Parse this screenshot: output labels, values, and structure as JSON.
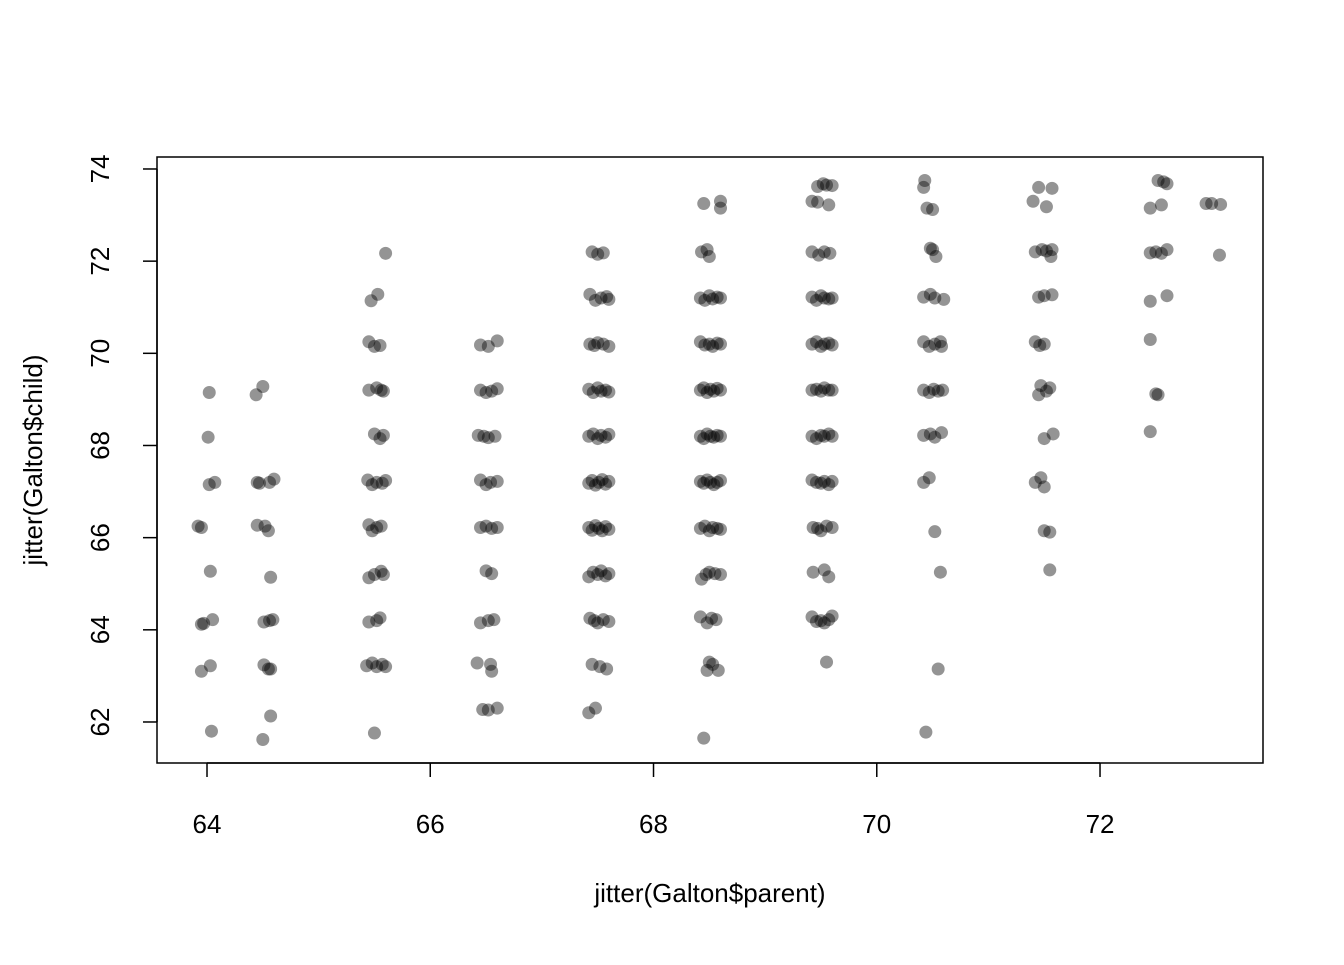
{
  "chart_data": {
    "type": "scatter",
    "xlabel": "jitter(Galton$parent)",
    "ylabel": "jitter(Galton$child)",
    "xlim": [
      63.552,
      73.46
    ],
    "ylim": [
      61.11,
      74.26
    ],
    "xticks": [
      64,
      66,
      68,
      70,
      72
    ],
    "yticks": [
      62,
      64,
      66,
      68,
      70,
      72,
      74
    ],
    "color": "rgba(0,0,0,0.42)",
    "x": [
      64.02,
      64.01,
      64.02,
      64.07,
      63.92,
      63.95,
      64.03,
      63.95,
      63.97,
      64.05,
      63.95,
      64.03,
      64.04,
      64.44,
      64.5,
      64.45,
      64.47,
      64.56,
      64.6,
      64.45,
      64.52,
      64.55,
      64.57,
      64.51,
      64.59,
      64.56,
      64.51,
      64.55,
      64.57,
      64.57,
      64.5,
      65.6,
      65.47,
      65.53,
      65.45,
      65.5,
      65.55,
      65.45,
      65.52,
      65.56,
      65.58,
      65.5,
      65.55,
      65.58,
      65.44,
      65.48,
      65.52,
      65.57,
      65.6,
      65.45,
      65.48,
      65.52,
      65.56,
      65.45,
      65.5,
      65.56,
      65.58,
      65.45,
      65.52,
      65.55,
      65.43,
      65.48,
      65.52,
      65.57,
      65.6,
      65.5,
      66.45,
      66.52,
      66.6,
      66.45,
      66.5,
      66.55,
      66.6,
      66.43,
      66.48,
      66.52,
      66.58,
      66.45,
      66.5,
      66.54,
      66.6,
      66.45,
      66.5,
      66.55,
      66.6,
      66.5,
      66.55,
      66.45,
      66.52,
      66.57,
      66.42,
      66.54,
      66.55,
      66.47,
      66.52,
      66.6,
      67.45,
      67.5,
      67.55,
      67.43,
      67.48,
      67.53,
      67.58,
      67.6,
      67.43,
      67.47,
      67.5,
      67.55,
      67.6,
      67.42,
      67.46,
      67.5,
      67.53,
      67.57,
      67.6,
      67.42,
      67.46,
      67.5,
      67.53,
      67.57,
      67.6,
      67.42,
      67.45,
      67.48,
      67.51,
      67.54,
      67.57,
      67.6,
      67.42,
      67.45,
      67.48,
      67.51,
      67.54,
      67.57,
      67.6,
      67.42,
      67.46,
      67.5,
      67.53,
      67.57,
      67.6,
      67.43,
      67.47,
      67.5,
      67.55,
      67.6,
      67.45,
      67.52,
      67.58,
      67.42,
      67.48,
      68.45,
      68.6,
      68.6,
      68.43,
      68.48,
      68.5,
      68.42,
      68.46,
      68.5,
      68.53,
      68.57,
      68.6,
      68.42,
      68.46,
      68.5,
      68.53,
      68.57,
      68.6,
      68.42,
      68.45,
      68.48,
      68.51,
      68.54,
      68.57,
      68.6,
      68.42,
      68.45,
      68.48,
      68.51,
      68.54,
      68.57,
      68.6,
      68.42,
      68.45,
      68.48,
      68.51,
      68.54,
      68.57,
      68.6,
      68.42,
      68.46,
      68.5,
      68.53,
      68.57,
      68.6,
      68.43,
      68.47,
      68.5,
      68.55,
      68.6,
      68.42,
      68.48,
      68.52,
      68.56,
      68.48,
      68.5,
      68.53,
      68.58,
      68.45,
      69.47,
      69.52,
      69.55,
      69.6,
      69.42,
      69.47,
      69.57,
      69.42,
      69.48,
      69.53,
      69.58,
      69.42,
      69.46,
      69.5,
      69.53,
      69.57,
      69.6,
      69.42,
      69.46,
      69.5,
      69.53,
      69.57,
      69.6,
      69.42,
      69.46,
      69.5,
      69.53,
      69.57,
      69.6,
      69.42,
      69.46,
      69.5,
      69.53,
      69.57,
      69.6,
      69.42,
      69.46,
      69.5,
      69.53,
      69.57,
      69.6,
      69.43,
      69.47,
      69.5,
      69.55,
      69.6,
      69.43,
      69.53,
      69.57,
      69.42,
      69.46,
      69.5,
      69.53,
      69.57,
      69.6,
      69.55,
      70.43,
      70.42,
      70.45,
      70.5,
      70.48,
      70.5,
      70.53,
      70.42,
      70.48,
      70.52,
      70.6,
      70.42,
      70.47,
      70.52,
      70.57,
      70.58,
      70.42,
      70.47,
      70.51,
      70.55,
      70.59,
      70.42,
      70.48,
      70.52,
      70.58,
      70.42,
      70.47,
      70.52,
      70.57,
      70.55,
      70.44,
      71.45,
      71.57,
      71.4,
      71.52,
      71.42,
      71.48,
      71.52,
      71.57,
      71.56,
      71.45,
      71.5,
      71.57,
      71.42,
      71.46,
      71.5,
      71.47,
      71.52,
      71.55,
      71.45,
      71.5,
      71.58,
      71.42,
      71.47,
      71.5,
      71.5,
      71.55,
      71.55,
      72.52,
      72.57,
      72.6,
      72.45,
      72.55,
      72.45,
      72.5,
      72.55,
      72.6,
      72.45,
      72.6,
      72.45,
      72.5,
      72.52,
      72.45,
      72.95,
      73.0,
      73.08,
      73.07
    ],
    "values": [
      69.15,
      68.18,
      67.15,
      67.2,
      66.25,
      66.22,
      65.27,
      64.12,
      64.14,
      64.22,
      63.1,
      63.22,
      61.8,
      69.1,
      69.28,
      67.2,
      67.18,
      67.2,
      67.27,
      66.27,
      66.25,
      66.15,
      65.14,
      64.17,
      64.22,
      64.2,
      63.24,
      63.15,
      63.15,
      62.13,
      61.62,
      72.17,
      71.14,
      71.28,
      70.25,
      70.15,
      70.17,
      69.2,
      69.25,
      69.2,
      69.18,
      68.25,
      68.15,
      68.22,
      67.25,
      67.15,
      67.2,
      67.18,
      67.24,
      66.28,
      66.15,
      66.22,
      66.25,
      65.13,
      65.2,
      65.27,
      65.2,
      64.17,
      64.2,
      64.26,
      63.22,
      63.28,
      63.2,
      63.25,
      63.2,
      61.76,
      70.18,
      70.15,
      70.27,
      69.2,
      69.15,
      69.18,
      69.23,
      68.22,
      68.2,
      68.17,
      68.2,
      67.25,
      67.15,
      67.2,
      67.22,
      66.22,
      66.25,
      66.2,
      66.22,
      65.28,
      65.22,
      64.15,
      64.2,
      64.22,
      63.28,
      63.25,
      63.1,
      62.27,
      62.26,
      62.3,
      72.2,
      72.15,
      72.18,
      71.28,
      71.15,
      71.2,
      71.23,
      71.17,
      70.2,
      70.17,
      70.23,
      70.2,
      70.15,
      69.22,
      69.15,
      69.25,
      69.18,
      69.2,
      69.16,
      68.2,
      68.25,
      68.15,
      68.22,
      68.18,
      68.24,
      67.18,
      67.24,
      67.14,
      67.2,
      67.26,
      67.16,
      67.22,
      66.22,
      66.16,
      66.26,
      66.2,
      66.15,
      66.24,
      66.18,
      65.15,
      65.25,
      65.2,
      65.28,
      65.17,
      65.22,
      64.25,
      64.2,
      64.15,
      64.22,
      64.18,
      63.25,
      63.2,
      63.15,
      62.2,
      62.3,
      73.25,
      73.3,
      73.15,
      72.2,
      72.25,
      72.1,
      71.2,
      71.15,
      71.25,
      71.18,
      71.22,
      71.2,
      70.25,
      70.18,
      70.2,
      70.15,
      70.22,
      70.2,
      69.2,
      69.25,
      69.15,
      69.22,
      69.18,
      69.24,
      69.2,
      68.2,
      68.15,
      68.25,
      68.2,
      68.18,
      68.22,
      68.2,
      67.22,
      67.18,
      67.25,
      67.2,
      67.15,
      67.2,
      67.24,
      66.2,
      66.25,
      66.15,
      66.22,
      66.2,
      66.18,
      65.1,
      65.2,
      65.25,
      65.22,
      65.2,
      64.28,
      64.15,
      64.25,
      64.22,
      63.12,
      63.3,
      63.25,
      63.12,
      61.65,
      73.62,
      73.68,
      73.65,
      73.64,
      73.3,
      73.28,
      73.22,
      72.2,
      72.13,
      72.2,
      72.17,
      71.22,
      71.15,
      71.25,
      71.2,
      71.18,
      71.2,
      70.2,
      70.25,
      70.15,
      70.2,
      70.22,
      70.18,
      69.2,
      69.22,
      69.18,
      69.25,
      69.2,
      69.2,
      68.2,
      68.15,
      68.22,
      68.2,
      68.25,
      68.2,
      67.25,
      67.2,
      67.18,
      67.22,
      67.15,
      67.22,
      66.22,
      66.2,
      66.15,
      66.25,
      66.22,
      65.25,
      65.3,
      65.15,
      64.28,
      64.18,
      64.2,
      64.15,
      64.22,
      64.3,
      63.3,
      73.75,
      73.6,
      73.15,
      73.12,
      72.28,
      72.25,
      72.1,
      71.22,
      71.28,
      71.2,
      71.17,
      70.25,
      70.15,
      70.2,
      70.25,
      70.15,
      69.2,
      69.15,
      69.22,
      69.18,
      69.2,
      68.22,
      68.25,
      68.18,
      68.28,
      67.2,
      67.3,
      66.13,
      65.25,
      63.15,
      61.78,
      73.6,
      73.58,
      73.3,
      73.18,
      72.2,
      72.25,
      72.22,
      72.25,
      72.1,
      71.22,
      71.25,
      71.27,
      70.25,
      70.17,
      70.2,
      69.3,
      69.18,
      69.25,
      69.1,
      68.15,
      68.25,
      67.2,
      67.3,
      67.1,
      66.15,
      66.12,
      65.3,
      73.75,
      73.72,
      73.68,
      73.15,
      73.22,
      72.18,
      72.2,
      72.17,
      72.25,
      71.13,
      71.25,
      70.3,
      69.12,
      69.1,
      68.3,
      73.25,
      73.25,
      73.23,
      72.13
    ]
  }
}
